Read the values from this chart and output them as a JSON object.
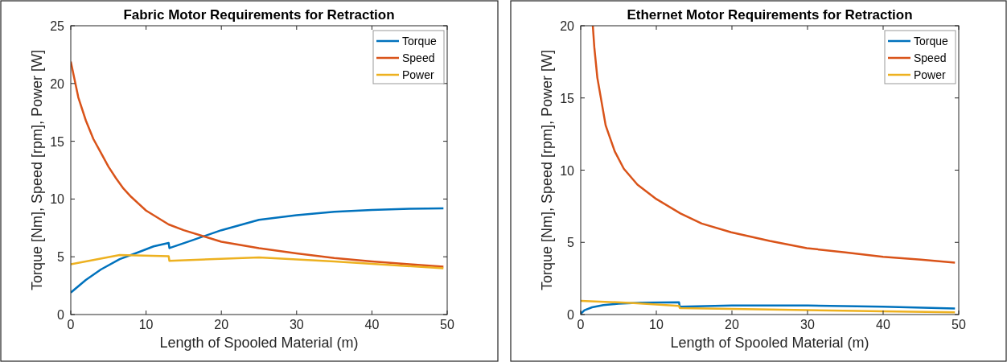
{
  "chart_data": [
    {
      "type": "line",
      "title": "Fabric Motor Requirements for Retraction",
      "xlabel": "Length of Spooled Material (m)",
      "ylabel": "Torque [Nm], Speed [rpm], Power [W]",
      "xlim": [
        0,
        50
      ],
      "xticks": [
        0,
        10,
        20,
        30,
        40,
        50
      ],
      "ylim": [
        0,
        25
      ],
      "yticks": [
        0,
        5,
        10,
        15,
        20,
        25
      ],
      "grid": false,
      "legend": "top right",
      "line_style": "solid",
      "marker": "none",
      "series": [
        {
          "name": "Torque",
          "color": "#0072bd",
          "x": [
            0,
            2,
            4,
            6.5,
            9,
            11,
            13,
            13.1,
            16,
            20,
            25,
            30,
            35,
            40,
            45,
            49.5
          ],
          "values": [
            1.9,
            3.0,
            3.9,
            4.8,
            5.4,
            5.9,
            6.2,
            5.75,
            6.4,
            7.3,
            8.2,
            8.6,
            8.9,
            9.05,
            9.15,
            9.2
          ]
        },
        {
          "name": "Speed",
          "color": "#d95319",
          "x": [
            0,
            1,
            2,
            3,
            4,
            5,
            6,
            7,
            8,
            10,
            13,
            15,
            18,
            20,
            25,
            30,
            35,
            40,
            45,
            49.5
          ],
          "values": [
            21.9,
            18.8,
            16.8,
            15.2,
            14,
            12.8,
            11.8,
            10.9,
            10.2,
            9.0,
            7.8,
            7.3,
            6.7,
            6.3,
            5.75,
            5.3,
            4.9,
            4.6,
            4.35,
            4.15
          ]
        },
        {
          "name": "Power",
          "color": "#edb120",
          "x": [
            0,
            6.5,
            13,
            13.1,
            25,
            35,
            49.5
          ],
          "values": [
            4.35,
            5.15,
            5.05,
            4.65,
            4.95,
            4.6,
            4.0
          ]
        }
      ]
    },
    {
      "type": "line",
      "title": "Ethernet Motor Requirements for Retraction",
      "xlabel": "Length of Spooled Material (m)",
      "ylabel": "Torque [Nm], Speed [rpm], Power [W]",
      "xlim": [
        0,
        50
      ],
      "xticks": [
        0,
        10,
        20,
        30,
        40,
        50
      ],
      "ylim": [
        0,
        20
      ],
      "yticks": [
        0,
        5,
        10,
        15,
        20
      ],
      "grid": false,
      "legend": "top right",
      "line_style": "solid",
      "marker": "none",
      "series": [
        {
          "name": "Torque",
          "color": "#0072bd",
          "x": [
            0,
            0.5,
            1.5,
            3,
            5,
            8,
            13,
            13.1,
            20,
            30,
            40,
            49.5
          ],
          "values": [
            0.05,
            0.3,
            0.5,
            0.65,
            0.75,
            0.82,
            0.85,
            0.55,
            0.62,
            0.62,
            0.55,
            0.42
          ]
        },
        {
          "name": "Speed",
          "color": "#d95319",
          "x": [
            1.6,
            1.8,
            2.2,
            3.3,
            4.5,
            5.7,
            7.5,
            10,
            13.2,
            16,
            19.9,
            25,
            29.9,
            35,
            40,
            45,
            49.5
          ],
          "values": [
            20,
            18.5,
            16.4,
            13.1,
            11.3,
            10.1,
            9.0,
            8.0,
            7.0,
            6.3,
            5.7,
            5.1,
            4.6,
            4.3,
            4.0,
            3.8,
            3.6
          ]
        },
        {
          "name": "Power",
          "color": "#edb120",
          "x": [
            0,
            7,
            13,
            13.1,
            25,
            40,
            49.5
          ],
          "values": [
            0.95,
            0.8,
            0.6,
            0.45,
            0.35,
            0.22,
            0.15
          ]
        }
      ]
    }
  ]
}
